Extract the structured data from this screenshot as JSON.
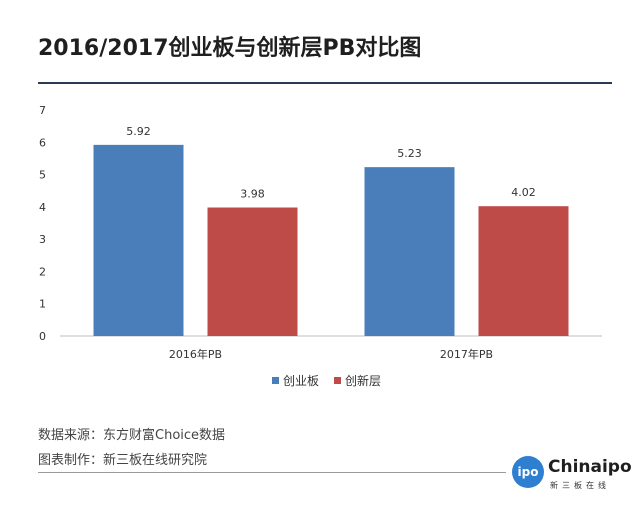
{
  "title": "2016/2017创业板与创新层PB对比图",
  "chart_data": {
    "type": "bar",
    "title": "2016/2017创业板与创新层PB对比图",
    "categories": [
      "2016年PB",
      "2017年PB"
    ],
    "series": [
      {
        "name": "创业板",
        "values": [
          5.92,
          5.23
        ],
        "color": "#4a7ebb"
      },
      {
        "name": "创新层",
        "values": [
          3.98,
          4.02
        ],
        "color": "#be4b48"
      }
    ],
    "ylim": [
      0,
      7
    ],
    "yticks": [
      "0",
      "1",
      "2",
      "3",
      "4",
      "5",
      "6",
      "7"
    ],
    "grid": false,
    "legend_position": "bottom"
  },
  "source": {
    "data_source": "数据来源：东方财富Choice数据",
    "made_by": "图表制作：新三板在线研究院"
  },
  "logo": {
    "badge": "ipo",
    "name": "Chinaipo",
    "sub": "新三板在线"
  }
}
